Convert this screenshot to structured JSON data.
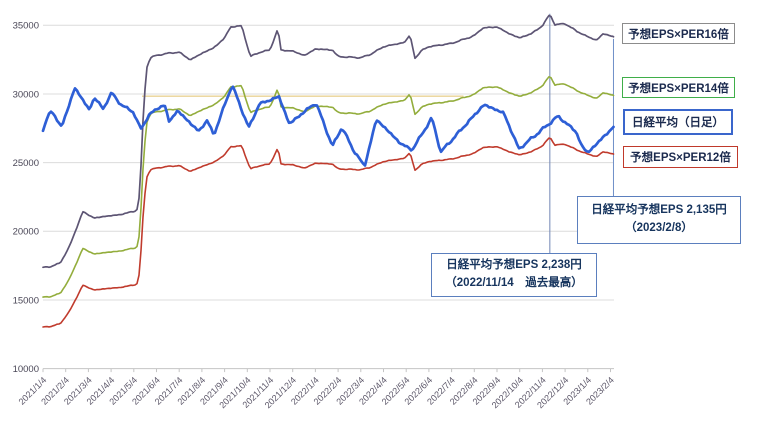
{
  "chart_data": {
    "type": "line",
    "title": "",
    "y_axis": {
      "min": 10000,
      "max": 35000,
      "step": 5000,
      "tick_labels": [
        "35000",
        "30000",
        "25000",
        "20000",
        "15000",
        "10000"
      ]
    },
    "x_axis": {
      "rotation_deg": -45,
      "tick_labels": [
        "2021/1/4",
        "2021/2/4",
        "2021/3/4",
        "2021/4/4",
        "2021/5/4",
        "2021/6/4",
        "2021/7/4",
        "2021/8/4",
        "2021/9/4",
        "2021/10/4",
        "2021/11/4",
        "2021/12/4",
        "2022/1/4",
        "2022/2/4",
        "2022/3/4",
        "2022/4/4",
        "2022/5/4",
        "2022/6/4",
        "2022/7/4",
        "2022/8/4",
        "2022/9/4",
        "2022/10/4",
        "2022/11/4",
        "2022/12/4",
        "2023/1/4",
        "2023/2/4"
      ]
    },
    "legend": [
      {
        "label": "予想EPS×PER16倍",
        "line_color": "#5d5574",
        "box_border": "#8c8c8c"
      },
      {
        "label": "予想EPS×PER14倍",
        "line_color": "#93ad3c",
        "box_border": "#3fae49"
      },
      {
        "label": "日経平均（日足）",
        "line_color": "#2e5fd6",
        "box_border": "#3a66cc"
      },
      {
        "label": "予想EPS×PER12倍",
        "line_color": "#c03b2d",
        "box_border": "#c0392b"
      }
    ],
    "series": [
      {
        "name": "予想EPS×PER16倍",
        "type": "derived",
        "formula": "eps_forecast × 16",
        "color": "#5d5574"
      },
      {
        "name": "予想EPS×PER14倍",
        "type": "derived",
        "formula": "eps_forecast × 14",
        "color": "#93ad3c"
      },
      {
        "name": "予想EPS×PER12倍",
        "type": "derived",
        "formula": "eps_forecast × 12",
        "color": "#c03b2d"
      },
      {
        "name": "日経平均（日足）",
        "type": "daily",
        "color": "#2e5fd6",
        "points": [
          [
            "2021/1/4",
            27260
          ],
          [
            "2021/1/8",
            28140
          ],
          [
            "2021/1/14",
            28760
          ],
          [
            "2021/1/29",
            27660
          ],
          [
            "2021/2/5",
            28560
          ],
          [
            "2021/2/16",
            30470
          ],
          [
            "2021/3/5",
            28860
          ],
          [
            "2021/3/12",
            29720
          ],
          [
            "2021/3/24",
            28930
          ],
          [
            "2021/4/5",
            30090
          ],
          [
            "2021/4/19",
            29100
          ],
          [
            "2021/5/2",
            28810
          ],
          [
            "2021/5/13",
            27450
          ],
          [
            "2021/5/24",
            28400
          ],
          [
            "2021/6/4",
            28940
          ],
          [
            "2021/6/15",
            29160
          ],
          [
            "2021/6/21",
            28010
          ],
          [
            "2021/7/2",
            28780
          ],
          [
            "2021/7/30",
            27280
          ],
          [
            "2021/8/11",
            28070
          ],
          [
            "2021/8/20",
            27013
          ],
          [
            "2021/9/14",
            30670
          ],
          [
            "2021/10/6",
            27530
          ],
          [
            "2021/10/20",
            29255
          ],
          [
            "2021/11/16",
            29810
          ],
          [
            "2021/11/30",
            27820
          ],
          [
            "2021/12/28",
            29070
          ],
          [
            "2022/1/5",
            29330
          ],
          [
            "2022/1/27",
            26170
          ],
          [
            "2022/2/9",
            27580
          ],
          [
            "2022/2/24",
            25970
          ],
          [
            "2022/3/9",
            24720
          ],
          [
            "2022/3/25",
            28150
          ],
          [
            "2022/4/27",
            26390
          ],
          [
            "2022/5/12",
            25920
          ],
          [
            "2022/6/8",
            28250
          ],
          [
            "2022/6/20",
            25770
          ],
          [
            "2022/8/17",
            29220
          ],
          [
            "2022/9/13",
            28615
          ],
          [
            "2022/10/3",
            25990
          ],
          [
            "2022/11/25",
            28380
          ],
          [
            "2022/12/19",
            27240
          ],
          [
            "2022/12/26",
            26235
          ],
          [
            "2023/1/4",
            25720
          ],
          [
            "2023/2/8",
            27600
          ]
        ]
      }
    ],
    "eps_forecast_points": [
      [
        "2021/1/4",
        1085
      ],
      [
        "2021/1/15",
        1090
      ],
      [
        "2021/1/27",
        1105
      ],
      [
        "2021/2/9",
        1180
      ],
      [
        "2021/2/27",
        1339
      ],
      [
        "2021/3/12",
        1310
      ],
      [
        "2021/3/26",
        1318
      ],
      [
        "2021/4/15",
        1325
      ],
      [
        "2021/5/8",
        1344
      ],
      [
        "2021/5/12",
        1420
      ],
      [
        "2021/5/17",
        1800
      ],
      [
        "2021/5/21",
        1990
      ],
      [
        "2021/5/26",
        2040
      ],
      [
        "2021/6/4",
        2050
      ],
      [
        "2021/6/19",
        2060
      ],
      [
        "2021/7/4",
        2065
      ],
      [
        "2021/7/19",
        2030
      ],
      [
        "2021/8/4",
        2060
      ],
      [
        "2021/8/20",
        2085
      ],
      [
        "2021/9/4",
        2130
      ],
      [
        "2021/9/12",
        2180
      ],
      [
        "2021/9/27",
        2185
      ],
      [
        "2021/10/8",
        2045
      ],
      [
        "2021/10/21",
        2065
      ],
      [
        "2021/11/4",
        2075
      ],
      [
        "2021/11/15",
        2175
      ],
      [
        "2021/11/18",
        2075
      ],
      [
        "2021/12/4",
        2070
      ],
      [
        "2021/12/20",
        2050
      ],
      [
        "2022/1/4",
        2080
      ],
      [
        "2022/1/27",
        2075
      ],
      [
        "2022/2/4",
        2045
      ],
      [
        "2022/3/4",
        2040
      ],
      [
        "2022/3/17",
        2055
      ],
      [
        "2022/4/4",
        2090
      ],
      [
        "2022/5/2",
        2110
      ],
      [
        "2022/5/9",
        2145
      ],
      [
        "2022/5/16",
        2035
      ],
      [
        "2022/5/25",
        2075
      ],
      [
        "2022/6/4",
        2090
      ],
      [
        "2022/7/4",
        2105
      ],
      [
        "2022/8/4",
        2140
      ],
      [
        "2022/8/15",
        2175
      ],
      [
        "2022/9/4",
        2180
      ],
      [
        "2022/9/20",
        2150
      ],
      [
        "2022/10/4",
        2130
      ],
      [
        "2022/10/20",
        2150
      ],
      [
        "2022/11/4",
        2185
      ],
      [
        "2022/11/14",
        2238
      ],
      [
        "2022/11/21",
        2190
      ],
      [
        "2022/12/4",
        2195
      ],
      [
        "2022/12/20",
        2160
      ],
      [
        "2023/1/4",
        2135
      ],
      [
        "2023/1/16",
        2120
      ],
      [
        "2023/1/25",
        2150
      ],
      [
        "2023/2/8",
        2135
      ]
    ],
    "reference_line": {
      "value": 30000,
      "from": "2021/5/15",
      "to": "2022/7/20",
      "color": "#e9d394"
    },
    "annotations": [
      {
        "line1": "日経平均予想EPS 2,238円",
        "line2": "（2022/11/14　過去最高）",
        "anchor_date": "2022/11/14",
        "anchor_value_eps": 2238
      },
      {
        "line1": "日経平均予想EPS 2,135円",
        "line2": "（2023/2/8）",
        "anchor_date": "2023/2/8",
        "anchor_value_eps": 2135
      }
    ],
    "grid": true,
    "legend_position": "right"
  }
}
